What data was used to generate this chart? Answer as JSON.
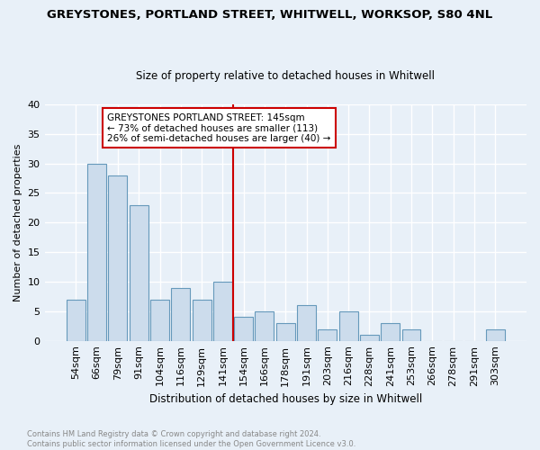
{
  "title": "GREYSTONES, PORTLAND STREET, WHITWELL, WORKSOP, S80 4NL",
  "subtitle": "Size of property relative to detached houses in Whitwell",
  "xlabel": "Distribution of detached houses by size in Whitwell",
  "ylabel": "Number of detached properties",
  "categories": [
    "54sqm",
    "66sqm",
    "79sqm",
    "91sqm",
    "104sqm",
    "116sqm",
    "129sqm",
    "141sqm",
    "154sqm",
    "166sqm",
    "178sqm",
    "191sqm",
    "203sqm",
    "216sqm",
    "228sqm",
    "241sqm",
    "253sqm",
    "266sqm",
    "278sqm",
    "291sqm",
    "303sqm"
  ],
  "values": [
    7,
    30,
    28,
    23,
    7,
    9,
    7,
    10,
    4,
    5,
    3,
    6,
    2,
    5,
    1,
    3,
    2,
    0,
    0,
    0,
    2
  ],
  "bar_color": "#ccdcec",
  "bar_edge_color": "#6699bb",
  "vline_index": 7.5,
  "vline_color": "#cc0000",
  "ylim": [
    0,
    40
  ],
  "yticks": [
    0,
    5,
    10,
    15,
    20,
    25,
    30,
    35,
    40
  ],
  "annotation_text": "GREYSTONES PORTLAND STREET: 145sqm\n← 73% of detached houses are smaller (113)\n26% of semi-detached houses are larger (40) →",
  "annotation_box_color": "#ffffff",
  "annotation_box_edge": "#cc0000",
  "footer_text": "Contains HM Land Registry data © Crown copyright and database right 2024.\nContains public sector information licensed under the Open Government Licence v3.0.",
  "bg_color": "#e8f0f8",
  "grid_color": "#d0dce8",
  "title_fontsize": 9.5,
  "subtitle_fontsize": 8.5,
  "xlabel_fontsize": 8.5,
  "ylabel_fontsize": 8.0,
  "tick_fontsize": 8.0,
  "ann_fontsize": 7.5
}
